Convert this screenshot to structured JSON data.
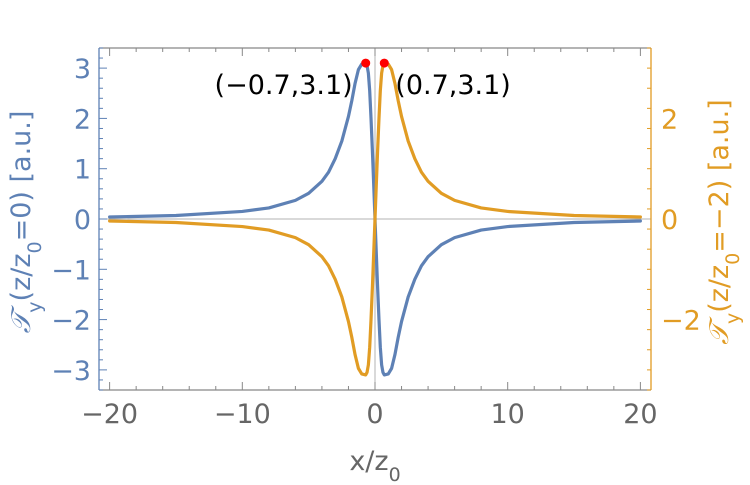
{
  "chart_data": {
    "type": "line",
    "xlabel": "x/z",
    "xlabel_sub": "0",
    "xlim": [
      -20.8,
      20.8
    ],
    "x_ticks": [
      -20,
      -10,
      0,
      10,
      20
    ],
    "x_tick_labels": [
      "−20",
      "−10",
      "0",
      "10",
      "20"
    ],
    "left_axis": {
      "ylim": [
        -3.4,
        3.4
      ],
      "ticks": [
        -3,
        -2,
        -1,
        0,
        1,
        2,
        3
      ],
      "tick_labels": [
        "−3",
        "−2",
        "−1",
        "0",
        "1",
        "2",
        "3"
      ],
      "label_parts": [
        "𝒯",
        "y",
        "(z/z",
        "0",
        "=0) [a.u.]"
      ],
      "color": "#5e81b5"
    },
    "right_axis": {
      "ylim": [
        -3.4,
        3.4
      ],
      "ticks": [
        -2,
        0,
        2
      ],
      "tick_labels": [
        "−2",
        "0",
        "2"
      ],
      "label_parts": [
        "𝒯",
        "y",
        "(z/z",
        "0",
        "=−2) [a.u.]"
      ],
      "color": "#e19c24"
    },
    "series": [
      {
        "axis": "left",
        "color": "#5e81b5",
        "x": [
          -20,
          -15,
          -10,
          -8,
          -6,
          -5,
          -4,
          -3.5,
          -3,
          -2.5,
          -2,
          -1.75,
          -1.5,
          -1.25,
          -1,
          -0.85,
          -0.7,
          -0.6,
          -0.5,
          -0.4,
          -0.3,
          -0.2,
          -0.1,
          0,
          0.1,
          0.2,
          0.3,
          0.4,
          0.5,
          0.6,
          0.7,
          0.85,
          1,
          1.25,
          1.5,
          1.75,
          2,
          2.5,
          3,
          3.5,
          4,
          5,
          6,
          8,
          10,
          15,
          20
        ],
        "y": [
          0.04,
          0.07,
          0.15,
          0.22,
          0.37,
          0.51,
          0.75,
          0.93,
          1.2,
          1.55,
          2.04,
          2.35,
          2.7,
          2.97,
          3.08,
          3.09,
          3.1,
          3.05,
          2.9,
          2.55,
          2.0,
          1.38,
          0.7,
          0.0,
          -0.7,
          -1.38,
          -2.0,
          -2.55,
          -2.9,
          -3.05,
          -3.1,
          -3.09,
          -3.08,
          -2.97,
          -2.7,
          -2.35,
          -2.04,
          -1.55,
          -1.2,
          -0.93,
          -0.75,
          -0.51,
          -0.37,
          -0.22,
          -0.15,
          -0.07,
          -0.04
        ]
      },
      {
        "axis": "right",
        "color": "#e19c24",
        "x": [
          -20,
          -15,
          -10,
          -8,
          -6,
          -5,
          -4,
          -3.5,
          -3,
          -2.5,
          -2,
          -1.75,
          -1.5,
          -1.25,
          -1,
          -0.85,
          -0.7,
          -0.6,
          -0.5,
          -0.4,
          -0.3,
          -0.2,
          -0.1,
          0,
          0.1,
          0.2,
          0.3,
          0.4,
          0.5,
          0.6,
          0.7,
          0.85,
          1,
          1.25,
          1.5,
          1.75,
          2,
          2.5,
          3,
          3.5,
          4,
          5,
          6,
          8,
          10,
          15,
          20
        ],
        "y": [
          -0.04,
          -0.07,
          -0.15,
          -0.22,
          -0.37,
          -0.51,
          -0.75,
          -0.93,
          -1.2,
          -1.55,
          -2.04,
          -2.35,
          -2.7,
          -2.97,
          -3.08,
          -3.09,
          -3.1,
          -3.05,
          -2.9,
          -2.55,
          -2.0,
          -1.38,
          -0.7,
          0.0,
          0.7,
          1.38,
          2.0,
          2.55,
          2.9,
          3.05,
          3.1,
          3.09,
          3.08,
          2.97,
          2.7,
          2.35,
          2.04,
          1.55,
          1.2,
          0.93,
          0.75,
          0.51,
          0.37,
          0.22,
          0.15,
          0.07,
          0.04
        ]
      }
    ],
    "highlight_points": [
      {
        "x": -0.7,
        "y": 3.1,
        "label": "(−0.7,3.1)",
        "color": "#ff0000"
      },
      {
        "x": 0.7,
        "y": 3.1,
        "label": "(0.7,3.1)",
        "color": "#ff0000"
      }
    ],
    "zero_line_color": "#b3b3b3",
    "frame_color": "#888888"
  }
}
